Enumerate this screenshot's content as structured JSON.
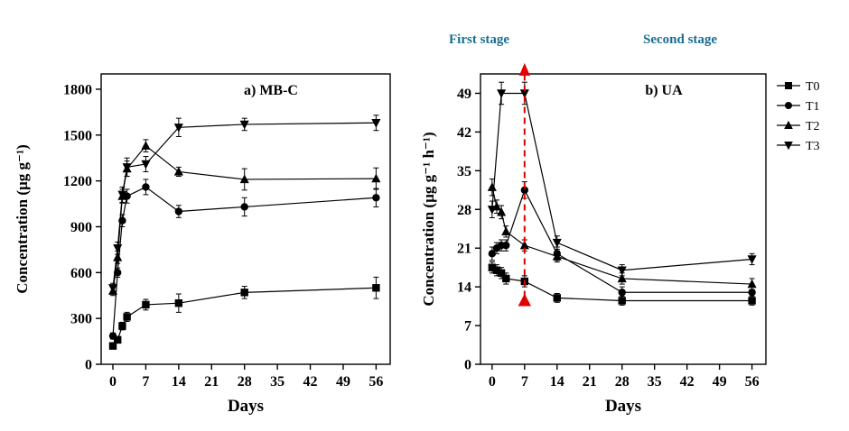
{
  "figure": {
    "background": "#ffffff",
    "axis_color": "#000000"
  },
  "stages": {
    "first": "First stage",
    "second": "Second stage",
    "color": "#1b6d93"
  },
  "legend": {
    "items": [
      {
        "label": "T0",
        "marker": "square"
      },
      {
        "label": "T1",
        "marker": "circle"
      },
      {
        "label": "T2",
        "marker": "triangle-up"
      },
      {
        "label": "T3",
        "marker": "triangle-down"
      }
    ]
  },
  "chart_data": [
    {
      "id": "mbc",
      "type": "line",
      "title": "a) MB-C",
      "xlabel": "Days",
      "ylabel": "Concentration (µg g⁻¹)",
      "xlim": [
        -2.5,
        59
      ],
      "ylim": [
        0,
        1900
      ],
      "xticks": [
        0,
        7,
        14,
        21,
        28,
        35,
        42,
        49,
        56
      ],
      "yticks": [
        0,
        300,
        600,
        900,
        1200,
        1500,
        1800
      ],
      "line_color": "#000000",
      "series": [
        {
          "name": "T0",
          "marker": "square",
          "x": [
            0,
            1,
            2,
            3,
            7,
            14,
            28,
            56
          ],
          "y": [
            120,
            160,
            250,
            310,
            390,
            400,
            470,
            500
          ],
          "err": [
            15,
            20,
            25,
            30,
            35,
            60,
            40,
            70
          ]
        },
        {
          "name": "T1",
          "marker": "circle",
          "x": [
            0,
            1,
            2,
            3,
            7,
            14,
            28,
            56
          ],
          "y": [
            185,
            600,
            940,
            1100,
            1160,
            1000,
            1030,
            1090
          ],
          "err": [
            20,
            30,
            40,
            45,
            50,
            40,
            60,
            60
          ]
        },
        {
          "name": "T2",
          "marker": "triangle-up",
          "x": [
            0,
            1,
            2,
            3,
            7,
            14,
            28,
            56
          ],
          "y": [
            480,
            700,
            1100,
            1280,
            1430,
            1260,
            1210,
            1215
          ],
          "err": [
            30,
            40,
            45,
            50,
            40,
            30,
            70,
            70
          ]
        },
        {
          "name": "T3",
          "marker": "triangle-down",
          "x": [
            0,
            1,
            2,
            3,
            7,
            14,
            28,
            56
          ],
          "y": [
            500,
            760,
            1110,
            1290,
            1310,
            1550,
            1570,
            1580
          ],
          "err": [
            30,
            40,
            50,
            60,
            50,
            60,
            40,
            50
          ]
        }
      ]
    },
    {
      "id": "ua",
      "type": "line",
      "title": "b) UA",
      "xlabel": "Days",
      "ylabel": "Concentration (µg g⁻¹ h⁻¹)",
      "xlim": [
        -2.5,
        59
      ],
      "ylim": [
        0,
        52.5
      ],
      "xticks": [
        0,
        7,
        14,
        21,
        28,
        35,
        42,
        49,
        56
      ],
      "yticks": [
        0,
        7,
        14,
        21,
        28,
        35,
        42,
        49
      ],
      "line_color": "#000000",
      "annotation": {
        "type": "vline-arrow",
        "x": 7,
        "y_from": 11.5,
        "y_to": 53,
        "color": "#e00000",
        "dash": true
      },
      "series": [
        {
          "name": "T0",
          "marker": "square",
          "x": [
            0,
            1,
            2,
            3,
            7,
            14,
            28,
            56
          ],
          "y": [
            17.5,
            17,
            16.5,
            15.5,
            15,
            12,
            11.5,
            11.5
          ],
          "err": [
            1,
            1,
            1,
            1,
            1,
            0.8,
            0.8,
            0.8
          ]
        },
        {
          "name": "T1",
          "marker": "circle",
          "x": [
            0,
            1,
            2,
            3,
            7,
            14,
            28,
            56
          ],
          "y": [
            20,
            21,
            21.5,
            21.5,
            31.5,
            20,
            13,
            13
          ],
          "err": [
            1.2,
            1,
            1,
            1,
            1.5,
            1.2,
            1,
            1
          ]
        },
        {
          "name": "T2",
          "marker": "triangle-up",
          "x": [
            0,
            1,
            2,
            3,
            7,
            14,
            28,
            56
          ],
          "y": [
            32,
            28.5,
            27.5,
            24,
            21.5,
            19.5,
            15.5,
            14.5
          ],
          "err": [
            1.5,
            1.2,
            1.2,
            1,
            1,
            1,
            1,
            1
          ]
        },
        {
          "name": "T3",
          "marker": "triangle-down",
          "x": [
            0,
            2,
            7,
            14,
            28,
            56
          ],
          "y": [
            28,
            49,
            49,
            22,
            17,
            19
          ],
          "err": [
            1.5,
            2,
            2,
            1.2,
            1,
            1
          ]
        }
      ]
    }
  ]
}
